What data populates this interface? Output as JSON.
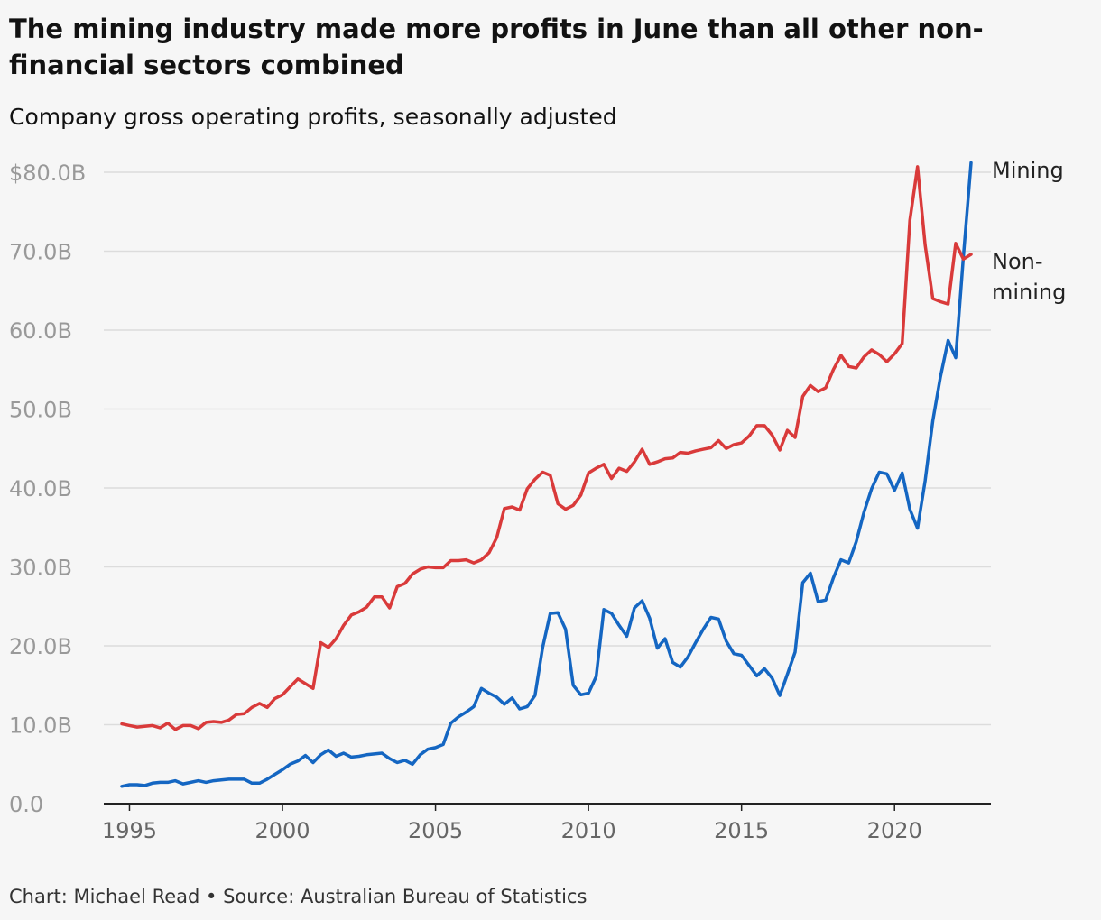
{
  "header": {
    "title": "The mining industry made more profits in June than all other non-financial sectors combined",
    "subtitle": "Company gross operating profits, seasonally adjusted"
  },
  "footer": {
    "credit": "Chart: Michael Read • Source: Australian Bureau of Statistics"
  },
  "chart_data": {
    "type": "line",
    "title": "The mining industry made more profits in June than all other non-financial sectors combined",
    "subtitle": "Company gross operating profits, seasonally adjusted",
    "xlabel": "",
    "ylabel": "",
    "xlim": [
      1994.75,
      2022.5
    ],
    "ylim": [
      0,
      80
    ],
    "x_ticks": [
      1995,
      2000,
      2005,
      2010,
      2015,
      2020
    ],
    "x_tick_labels": [
      "1995",
      "2000",
      "2005",
      "2010",
      "2015",
      "2020"
    ],
    "y_ticks": [
      0,
      10,
      20,
      30,
      40,
      50,
      60,
      70,
      80
    ],
    "y_tick_labels": [
      "0.0",
      "10.0B",
      "20.0B",
      "30.0B",
      "40.0B",
      "50.0B",
      "60.0B",
      "70.0B",
      "$80.0B"
    ],
    "grid": true,
    "legend": "direct labels at line ends",
    "series": [
      {
        "name": "Mining",
        "line_label": [
          "Mining"
        ],
        "color": "#1466c2",
        "points": [
          [
            1994.75,
            2.2
          ],
          [
            1995.0,
            2.4
          ],
          [
            1995.25,
            2.4
          ],
          [
            1995.5,
            2.3
          ],
          [
            1995.75,
            2.6
          ],
          [
            1996.0,
            2.7
          ],
          [
            1996.25,
            2.7
          ],
          [
            1996.5,
            2.9
          ],
          [
            1996.75,
            2.5
          ],
          [
            1997.0,
            2.7
          ],
          [
            1997.25,
            2.9
          ],
          [
            1997.5,
            2.7
          ],
          [
            1997.75,
            2.9
          ],
          [
            1998.0,
            3.0
          ],
          [
            1998.25,
            3.1
          ],
          [
            1998.5,
            3.1
          ],
          [
            1998.75,
            3.1
          ],
          [
            1999.0,
            2.6
          ],
          [
            1999.25,
            2.6
          ],
          [
            1999.5,
            3.1
          ],
          [
            1999.75,
            3.7
          ],
          [
            2000.0,
            4.3
          ],
          [
            2000.25,
            5.0
          ],
          [
            2000.5,
            5.4
          ],
          [
            2000.75,
            6.1
          ],
          [
            2001.0,
            5.2
          ],
          [
            2001.25,
            6.2
          ],
          [
            2001.5,
            6.8
          ],
          [
            2001.75,
            6.0
          ],
          [
            2002.0,
            6.4
          ],
          [
            2002.25,
            5.9
          ],
          [
            2002.5,
            6.0
          ],
          [
            2002.75,
            6.2
          ],
          [
            2003.0,
            6.3
          ],
          [
            2003.25,
            6.4
          ],
          [
            2003.5,
            5.7
          ],
          [
            2003.75,
            5.2
          ],
          [
            2004.0,
            5.5
          ],
          [
            2004.25,
            5.0
          ],
          [
            2004.5,
            6.2
          ],
          [
            2004.75,
            6.9
          ],
          [
            2005.0,
            7.1
          ],
          [
            2005.25,
            7.5
          ],
          [
            2005.5,
            10.2
          ],
          [
            2005.75,
            11.0
          ],
          [
            2006.0,
            11.6
          ],
          [
            2006.25,
            12.3
          ],
          [
            2006.5,
            14.6
          ],
          [
            2006.75,
            14.0
          ],
          [
            2007.0,
            13.5
          ],
          [
            2007.25,
            12.6
          ],
          [
            2007.5,
            13.4
          ],
          [
            2007.75,
            12.0
          ],
          [
            2008.0,
            12.3
          ],
          [
            2008.25,
            13.7
          ],
          [
            2008.5,
            19.8
          ],
          [
            2008.75,
            24.1
          ],
          [
            2009.0,
            24.2
          ],
          [
            2009.25,
            22.1
          ],
          [
            2009.5,
            15.0
          ],
          [
            2009.75,
            13.8
          ],
          [
            2010.0,
            14.0
          ],
          [
            2010.25,
            16.1
          ],
          [
            2010.5,
            24.6
          ],
          [
            2010.75,
            24.1
          ],
          [
            2011.0,
            22.6
          ],
          [
            2011.25,
            21.2
          ],
          [
            2011.5,
            24.8
          ],
          [
            2011.75,
            25.7
          ],
          [
            2012.0,
            23.5
          ],
          [
            2012.25,
            19.7
          ],
          [
            2012.5,
            20.9
          ],
          [
            2012.75,
            17.9
          ],
          [
            2013.0,
            17.3
          ],
          [
            2013.25,
            18.6
          ],
          [
            2013.5,
            20.4
          ],
          [
            2013.75,
            22.1
          ],
          [
            2014.0,
            23.6
          ],
          [
            2014.25,
            23.4
          ],
          [
            2014.5,
            20.6
          ],
          [
            2014.75,
            19.0
          ],
          [
            2015.0,
            18.8
          ],
          [
            2015.25,
            17.5
          ],
          [
            2015.5,
            16.2
          ],
          [
            2015.75,
            17.1
          ],
          [
            2016.0,
            15.9
          ],
          [
            2016.25,
            13.7
          ],
          [
            2016.5,
            16.4
          ],
          [
            2016.75,
            19.2
          ],
          [
            2017.0,
            28.0
          ],
          [
            2017.25,
            29.2
          ],
          [
            2017.5,
            25.6
          ],
          [
            2017.75,
            25.8
          ],
          [
            2018.0,
            28.6
          ],
          [
            2018.25,
            30.9
          ],
          [
            2018.5,
            30.5
          ],
          [
            2018.75,
            33.2
          ],
          [
            2019.0,
            36.9
          ],
          [
            2019.25,
            39.9
          ],
          [
            2019.5,
            42.0
          ],
          [
            2019.75,
            41.8
          ],
          [
            2020.0,
            39.7
          ],
          [
            2020.25,
            41.9
          ],
          [
            2020.5,
            37.3
          ],
          [
            2020.75,
            34.9
          ],
          [
            2021.0,
            40.9
          ],
          [
            2021.25,
            48.5
          ],
          [
            2021.5,
            54.1
          ],
          [
            2021.75,
            58.7
          ],
          [
            2022.0,
            56.5
          ],
          [
            2022.25,
            69.3
          ],
          [
            2022.5,
            81.2
          ]
        ]
      },
      {
        "name": "Non-mining",
        "line_label": [
          "Non-",
          "mining"
        ],
        "color": "#d93a3a",
        "points": [
          [
            1994.75,
            10.1
          ],
          [
            1995.0,
            9.9
          ],
          [
            1995.25,
            9.7
          ],
          [
            1995.5,
            9.8
          ],
          [
            1995.75,
            9.9
          ],
          [
            1996.0,
            9.6
          ],
          [
            1996.25,
            10.2
          ],
          [
            1996.5,
            9.4
          ],
          [
            1996.75,
            9.9
          ],
          [
            1997.0,
            9.9
          ],
          [
            1997.25,
            9.5
          ],
          [
            1997.5,
            10.3
          ],
          [
            1997.75,
            10.4
          ],
          [
            1998.0,
            10.3
          ],
          [
            1998.25,
            10.6
          ],
          [
            1998.5,
            11.3
          ],
          [
            1998.75,
            11.4
          ],
          [
            1999.0,
            12.2
          ],
          [
            1999.25,
            12.7
          ],
          [
            1999.5,
            12.2
          ],
          [
            1999.75,
            13.3
          ],
          [
            2000.0,
            13.8
          ],
          [
            2000.25,
            14.8
          ],
          [
            2000.5,
            15.8
          ],
          [
            2000.75,
            15.2
          ],
          [
            2001.0,
            14.6
          ],
          [
            2001.25,
            20.4
          ],
          [
            2001.5,
            19.8
          ],
          [
            2001.75,
            20.9
          ],
          [
            2002.0,
            22.6
          ],
          [
            2002.25,
            23.9
          ],
          [
            2002.5,
            24.3
          ],
          [
            2002.75,
            24.9
          ],
          [
            2003.0,
            26.2
          ],
          [
            2003.25,
            26.2
          ],
          [
            2003.5,
            24.8
          ],
          [
            2003.75,
            27.5
          ],
          [
            2004.0,
            27.9
          ],
          [
            2004.25,
            29.1
          ],
          [
            2004.5,
            29.7
          ],
          [
            2004.75,
            30.0
          ],
          [
            2005.0,
            29.9
          ],
          [
            2005.25,
            29.9
          ],
          [
            2005.5,
            30.8
          ],
          [
            2005.75,
            30.8
          ],
          [
            2006.0,
            30.9
          ],
          [
            2006.25,
            30.5
          ],
          [
            2006.5,
            30.9
          ],
          [
            2006.75,
            31.8
          ],
          [
            2007.0,
            33.7
          ],
          [
            2007.25,
            37.4
          ],
          [
            2007.5,
            37.6
          ],
          [
            2007.75,
            37.2
          ],
          [
            2008.0,
            39.9
          ],
          [
            2008.25,
            41.1
          ],
          [
            2008.5,
            42.0
          ],
          [
            2008.75,
            41.6
          ],
          [
            2009.0,
            38.0
          ],
          [
            2009.25,
            37.3
          ],
          [
            2009.5,
            37.8
          ],
          [
            2009.75,
            39.1
          ],
          [
            2010.0,
            41.9
          ],
          [
            2010.25,
            42.5
          ],
          [
            2010.5,
            43.0
          ],
          [
            2010.75,
            41.2
          ],
          [
            2011.0,
            42.5
          ],
          [
            2011.25,
            42.1
          ],
          [
            2011.5,
            43.3
          ],
          [
            2011.75,
            44.9
          ],
          [
            2012.0,
            43.0
          ],
          [
            2012.25,
            43.3
          ],
          [
            2012.5,
            43.7
          ],
          [
            2012.75,
            43.8
          ],
          [
            2013.0,
            44.5
          ],
          [
            2013.25,
            44.4
          ],
          [
            2013.5,
            44.7
          ],
          [
            2013.75,
            44.9
          ],
          [
            2014.0,
            45.1
          ],
          [
            2014.25,
            46.0
          ],
          [
            2014.5,
            45.0
          ],
          [
            2014.75,
            45.5
          ],
          [
            2015.0,
            45.7
          ],
          [
            2015.25,
            46.6
          ],
          [
            2015.5,
            47.9
          ],
          [
            2015.75,
            47.9
          ],
          [
            2016.0,
            46.7
          ],
          [
            2016.25,
            44.8
          ],
          [
            2016.5,
            47.3
          ],
          [
            2016.75,
            46.4
          ],
          [
            2017.0,
            51.6
          ],
          [
            2017.25,
            53.0
          ],
          [
            2017.5,
            52.2
          ],
          [
            2017.75,
            52.7
          ],
          [
            2018.0,
            55.0
          ],
          [
            2018.25,
            56.8
          ],
          [
            2018.5,
            55.4
          ],
          [
            2018.75,
            55.2
          ],
          [
            2019.0,
            56.6
          ],
          [
            2019.25,
            57.5
          ],
          [
            2019.5,
            56.9
          ],
          [
            2019.75,
            56.0
          ],
          [
            2020.0,
            57.0
          ],
          [
            2020.25,
            58.3
          ],
          [
            2020.5,
            73.9
          ],
          [
            2020.75,
            80.7
          ],
          [
            2021.0,
            70.8
          ],
          [
            2021.25,
            64.0
          ],
          [
            2021.5,
            63.6
          ],
          [
            2021.75,
            63.3
          ],
          [
            2022.0,
            71.0
          ],
          [
            2022.25,
            69.0
          ],
          [
            2022.5,
            69.6
          ]
        ]
      }
    ]
  }
}
